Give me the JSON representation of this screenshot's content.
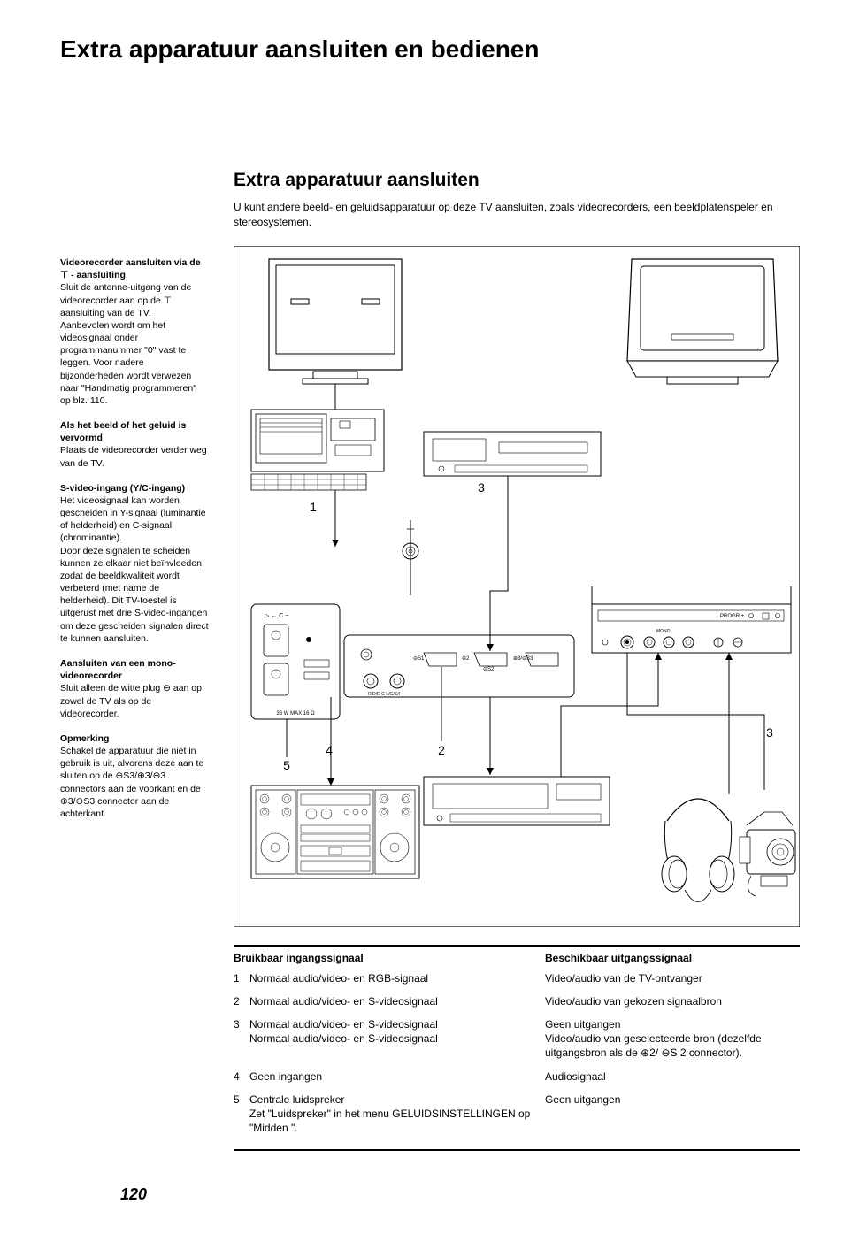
{
  "page_number": "120",
  "main_title": "Extra apparatuur aansluiten en bedienen",
  "sub_title": "Extra apparatuur aansluiten",
  "intro": "U kunt andere beeld- en geluidsapparatuur op deze TV aansluiten, zoals videorecorders, een beeldplatenspeler en stereosystemen.",
  "sidebar_notes": [
    {
      "title": "Videorecorder aansluiten via de ⊤ - aansluiting",
      "body": "Sluit de antenne-uitgang van de videorecorder aan op de ⊤ aansluiting van de TV.\nAanbevolen wordt om het videosignaal onder programmanummer \"0\" vast te leggen. Voor nadere bijzonderheden wordt verwezen naar \"Handmatig programmeren\" op blz. 110."
    },
    {
      "title": "Als het beeld of het geluid is vervormd",
      "body": "Plaats de videorecorder verder weg van de TV."
    },
    {
      "title": "S-video-ingang (Y/C-ingang)",
      "body": "Het videosignaal kan worden gescheiden in Y-signaal (luminantie of helderheid) en C-signaal (chrominantie).\nDoor deze signalen te scheiden kunnen ze elkaar niet beïnvloeden, zodat de beeldkwaliteit wordt verbeterd (met name de helderheid). Dit TV-toestel is uitgerust met drie S-video-ingangen om deze gescheiden signalen direct te kunnen aansluiten."
    },
    {
      "title": "Aansluiten van een mono-videorecorder",
      "body": "Sluit alleen de witte plug ⊖ aan op zowel de TV als op de videorecorder."
    },
    {
      "title": "Opmerking",
      "body": "Schakel de apparatuur die niet in gebruik is uit, alvorens deze aan te sluiten op de ⊖S3/⊕3/⊖3 connectors aan de voorkant en de ⊕3/⊖S3 connector aan de achterkant."
    }
  ],
  "signal_headers": {
    "input": "Bruikbaar ingangssignaal",
    "output": "Beschikbaar uitgangssignaal"
  },
  "signal_rows": [
    {
      "num": "1",
      "input": "Normaal audio/video- en RGB-signaal",
      "output": "Video/audio van de TV-ontvanger"
    },
    {
      "num": "2",
      "input": "Normaal audio/video- en S-videosignaal",
      "output": "Video/audio van gekozen signaalbron"
    },
    {
      "num": "3",
      "input": "Normaal audio/video- en S-videosignaal\nNormaal audio/video- en S-videosignaal",
      "output": "Geen uitgangen\nVideo/audio van geselecteerde bron (dezelfde uitgangsbron als de ⊕2/ ⊖S 2 connector)."
    },
    {
      "num": "4",
      "input": "Geen ingangen",
      "output": "Audiosignaal"
    },
    {
      "num": "5",
      "input": "Centrale luidspreker\nZet \"Luidspreker\" in het menu GELUIDSINSTELLINGEN op \"Midden \".",
      "output": "Geen uitgangen"
    }
  ],
  "diagram": {
    "callouts": [
      "1",
      "2",
      "3",
      "3",
      "4",
      "5"
    ],
    "panel_labels": {
      "progr": "PROGR +",
      "mono": "MONO",
      "max": "36 W MAX 16 Ω",
      "rgb": "R/D/D G L/G/S/I"
    }
  }
}
